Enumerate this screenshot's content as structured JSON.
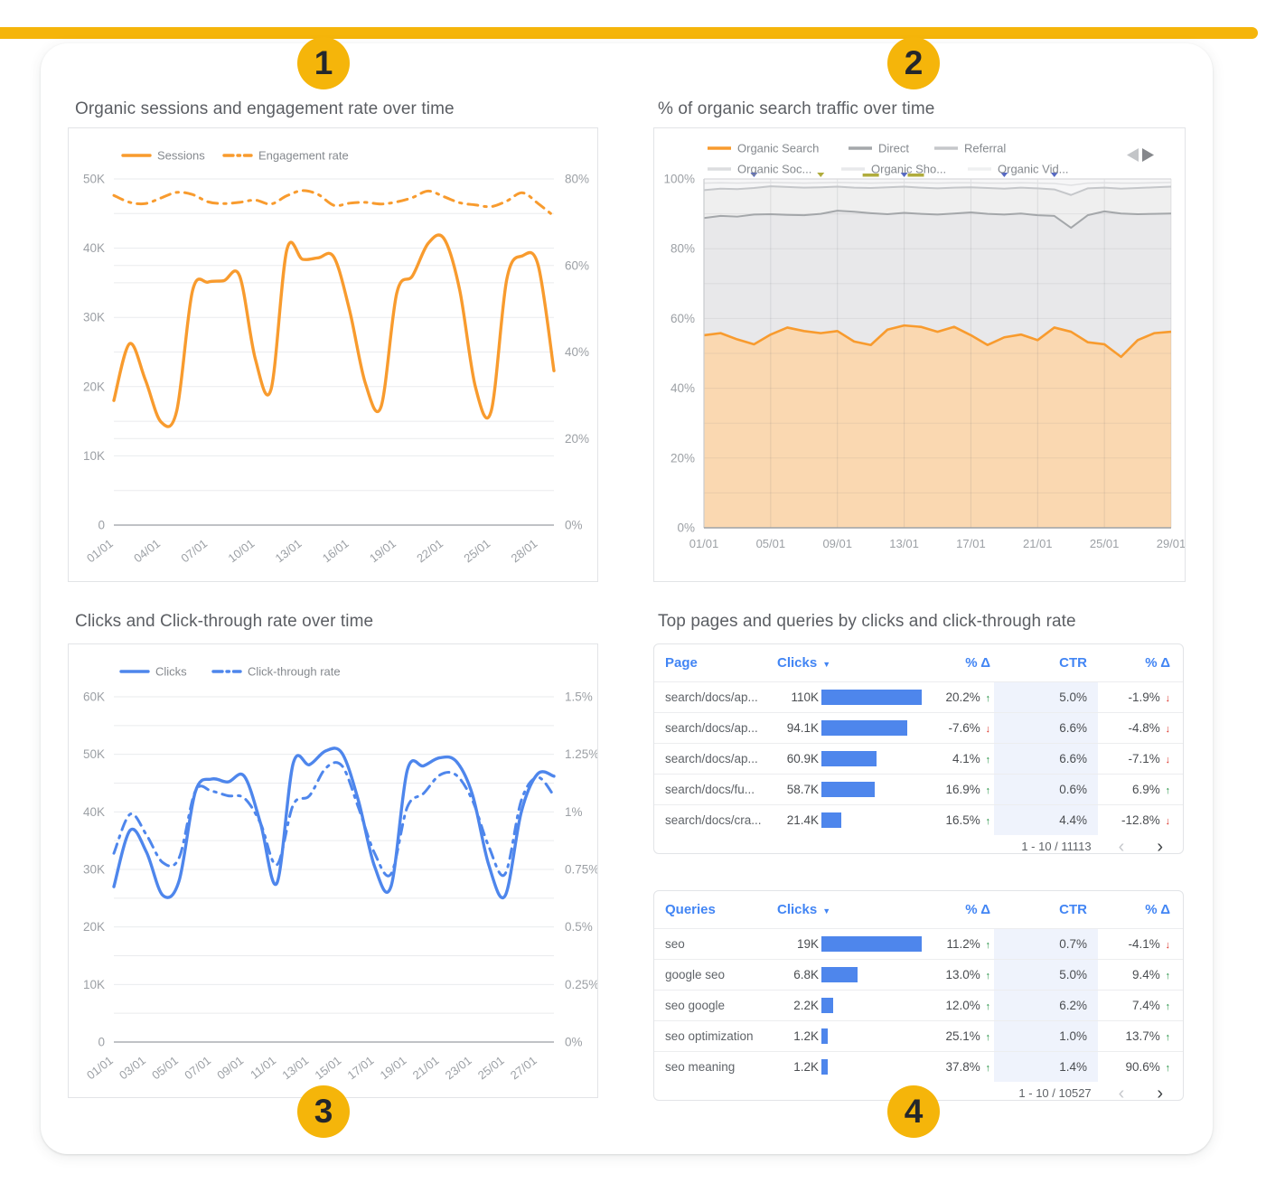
{
  "badges": [
    "1",
    "2",
    "3",
    "4"
  ],
  "panels": {
    "sessions": {
      "title": "Organic sessions and engagement rate over time"
    },
    "traffic": {
      "title": "% of organic search traffic over time"
    },
    "clicks": {
      "title": "Clicks and Click-through rate over time"
    },
    "tables": {
      "title": "Top pages and queries by clicks and click-through rate"
    }
  },
  "icons": {
    "sort": "▼",
    "up": "↑",
    "down": "↓",
    "prev": "‹",
    "next": "›",
    "nav_left": "◀",
    "nav_right": "▶"
  },
  "colors": {
    "accent_gold": "#F5B50A",
    "orange": "#F89B2E",
    "orange_fill": "#FAD8B1",
    "blue": "#4E86EC",
    "header_blue": "#4285F4",
    "green_up": "#1E8E3E",
    "red_down": "#D93025",
    "grid": "#EAEBEE",
    "axis_text": "#9CA0A5",
    "title_text": "#5B5E63",
    "cell_text": "#5F6368",
    "ctr_col_bg": "#EFF3FC"
  },
  "chart_data": [
    {
      "id": "sessions_engagement",
      "type": "line",
      "title": "Organic sessions and engagement rate over time",
      "x": [
        "01/01",
        "02/01",
        "03/01",
        "04/01",
        "05/01",
        "06/01",
        "07/01",
        "08/01",
        "09/01",
        "10/01",
        "11/01",
        "12/01",
        "13/01",
        "14/01",
        "15/01",
        "16/01",
        "17/01",
        "18/01",
        "19/01",
        "20/01",
        "21/01",
        "22/01",
        "23/01",
        "24/01",
        "25/01",
        "26/01",
        "27/01",
        "28/01",
        "29/01"
      ],
      "series": [
        {
          "name": "Sessions",
          "axis": "left",
          "style": "solid",
          "unit": "K",
          "values": [
            18.0,
            26.2,
            21.0,
            14.9,
            16.5,
            33.8,
            35.1,
            35.3,
            36.0,
            24.0,
            19.6,
            39.7,
            38.4,
            38.6,
            38.7,
            31.0,
            20.5,
            17.1,
            33.5,
            36.0,
            40.7,
            41.4,
            34.0,
            20.0,
            16.4,
            35.5,
            38.9,
            37.5,
            22.3
          ]
        },
        {
          "name": "Engagement rate",
          "axis": "right",
          "style": "dashdot",
          "unit": "%",
          "values": [
            76.2,
            74.6,
            74.3,
            75.6,
            76.9,
            76.4,
            74.7,
            74.3,
            74.6,
            75.1,
            74.2,
            76.1,
            77.3,
            76.4,
            73.9,
            74.4,
            74.6,
            74.2,
            74.7,
            75.7,
            77.2,
            75.9,
            74.5,
            74.0,
            73.6,
            74.9,
            76.8,
            74.3,
            71.4
          ]
        }
      ],
      "left_axis": {
        "min": 0,
        "max": 50,
        "ticks": [
          "0",
          "10K",
          "20K",
          "30K",
          "40K",
          "50K"
        ]
      },
      "right_axis": {
        "min": 0,
        "max": 80,
        "ticks": [
          "0%",
          "20%",
          "40%",
          "60%",
          "80%"
        ]
      },
      "x_tick_idx": [
        0,
        3,
        6,
        9,
        12,
        15,
        18,
        21,
        24,
        27
      ],
      "x_tick_labels": [
        "01/01",
        "04/01",
        "07/01",
        "10/01",
        "13/01",
        "16/01",
        "19/01",
        "22/01",
        "25/01",
        "28/01"
      ],
      "legend_position": "top"
    },
    {
      "id": "organic_share",
      "type": "area",
      "title": "% of organic search traffic over time",
      "x": [
        "01/01",
        "02/01",
        "03/01",
        "04/01",
        "05/01",
        "06/01",
        "07/01",
        "08/01",
        "09/01",
        "10/01",
        "11/01",
        "12/01",
        "13/01",
        "14/01",
        "15/01",
        "16/01",
        "17/01",
        "18/01",
        "19/01",
        "20/01",
        "21/01",
        "22/01",
        "23/01",
        "24/01",
        "25/01",
        "26/01",
        "27/01",
        "28/01",
        "29/01"
      ],
      "series": [
        {
          "name": "Organic Search",
          "boundary": "organic",
          "values": [
            55.2,
            55.8,
            54.0,
            52.6,
            55.4,
            57.4,
            56.4,
            55.8,
            56.4,
            53.4,
            52.4,
            56.8,
            58.0,
            57.6,
            56.2,
            57.6,
            55.2,
            52.4,
            54.6,
            55.4,
            53.8,
            57.4,
            56.2,
            53.2,
            52.6,
            49.0,
            53.8,
            55.8,
            56.2
          ]
        },
        {
          "name": "Direct",
          "boundary": "cumulative_top",
          "values": [
            88.8,
            89.4,
            89.2,
            89.8,
            89.9,
            89.7,
            89.6,
            90.0,
            90.9,
            90.6,
            90.2,
            89.9,
            90.3,
            90.0,
            89.8,
            90.1,
            90.4,
            90.0,
            89.8,
            90.1,
            89.6,
            89.4,
            86.0,
            89.6,
            90.7,
            90.1,
            89.9,
            90.0,
            90.1
          ]
        },
        {
          "name": "Referral",
          "boundary": "cumulative_top",
          "values": [
            96.8,
            97.2,
            97.1,
            97.4,
            97.9,
            97.7,
            97.5,
            97.6,
            97.8,
            97.5,
            97.4,
            97.6,
            97.8,
            97.5,
            97.3,
            97.5,
            97.6,
            97.4,
            97.2,
            97.5,
            97.3,
            97.0,
            95.4,
            97.3,
            97.5,
            97.2,
            97.4,
            97.6,
            97.8
          ]
        },
        {
          "name": "Organic Soc... / Sho... / Vid...",
          "boundary": "cumulative_top",
          "values": [
            98.8,
            98.9,
            98.8,
            98.9,
            99.0,
            98.9,
            98.8,
            98.9,
            99.0,
            98.9,
            98.8,
            98.9,
            99.0,
            98.9,
            98.8,
            98.9,
            98.9,
            98.8,
            98.8,
            98.9,
            98.8,
            98.7,
            98.2,
            98.8,
            98.9,
            98.8,
            98.8,
            98.9,
            99.0
          ]
        }
      ],
      "legend": [
        {
          "label": "Organic Search",
          "color": "#F89B2E"
        },
        {
          "label": "Direct",
          "color": "#A4A7AA"
        },
        {
          "label": "Referral",
          "color": "#C5C7CA"
        },
        {
          "label": "Organic Soc...",
          "color": "#DCDDDF"
        },
        {
          "label": "Organic Sho...",
          "color": "#E8E9EB"
        },
        {
          "label": "Organic Vid...",
          "color": "#EFF0F1"
        }
      ],
      "y_axis": {
        "min": 0,
        "max": 100,
        "ticks": [
          "0%",
          "20%",
          "40%",
          "60%",
          "80%",
          "100%"
        ]
      },
      "x_tick_idx": [
        0,
        4,
        8,
        12,
        16,
        20,
        24,
        28
      ],
      "x_tick_labels": [
        "01/01",
        "05/01",
        "09/01",
        "13/01",
        "17/01",
        "21/01",
        "25/01",
        "29/01"
      ],
      "markers": {
        "blue_triangle_days": [
          3,
          12,
          18,
          21
        ],
        "olive_triangle_days": [
          7
        ],
        "olive_bar_days": [
          10,
          12.7
        ]
      }
    },
    {
      "id": "clicks_ctr",
      "type": "line",
      "title": "Clicks and Click-through rate over time",
      "x": [
        "01/01",
        "02/01",
        "03/01",
        "04/01",
        "05/01",
        "06/01",
        "07/01",
        "08/01",
        "09/01",
        "10/01",
        "11/01",
        "12/01",
        "13/01",
        "14/01",
        "15/01",
        "16/01",
        "17/01",
        "18/01",
        "19/01",
        "20/01",
        "21/01",
        "22/01",
        "23/01",
        "24/01",
        "25/01",
        "26/01",
        "27/01",
        "28/01"
      ],
      "series": [
        {
          "name": "Clicks",
          "axis": "left",
          "style": "solid",
          "unit": "K",
          "values": [
            27.0,
            36.8,
            33.0,
            25.5,
            28.0,
            43.5,
            45.7,
            45.2,
            46.2,
            38.0,
            27.6,
            48.4,
            48.2,
            50.6,
            50.2,
            42.0,
            30.5,
            27.0,
            47.2,
            48.0,
            49.4,
            48.8,
            43.0,
            30.8,
            25.4,
            40.0,
            46.6,
            46.2
          ]
        },
        {
          "name": "Click-through rate",
          "axis": "right",
          "style": "dashdot",
          "unit": "%",
          "values": [
            0.82,
            0.99,
            0.9,
            0.78,
            0.8,
            1.09,
            1.09,
            1.07,
            1.06,
            0.95,
            0.77,
            1.03,
            1.07,
            1.19,
            1.2,
            1.02,
            0.82,
            0.73,
            1.02,
            1.08,
            1.16,
            1.16,
            1.05,
            0.85,
            0.73,
            1.05,
            1.15,
            1.07
          ]
        }
      ],
      "left_axis": {
        "min": 0,
        "max": 60,
        "ticks": [
          "0",
          "10K",
          "20K",
          "30K",
          "40K",
          "50K",
          "60K"
        ]
      },
      "right_axis": {
        "min": 0,
        "max": 1.5,
        "ticks": [
          "0%",
          "0.25%",
          "0.5%",
          "0.75%",
          "1%",
          "1.25%",
          "1.5%"
        ]
      },
      "x_tick_idx": [
        0,
        2,
        4,
        6,
        8,
        10,
        12,
        14,
        16,
        18,
        20,
        22,
        24,
        26
      ],
      "x_tick_labels": [
        "01/01",
        "03/01",
        "05/01",
        "07/01",
        "09/01",
        "11/01",
        "13/01",
        "15/01",
        "17/01",
        "19/01",
        "21/01",
        "23/01",
        "25/01",
        "27/01"
      ],
      "legend_position": "top"
    },
    {
      "id": "top_pages",
      "type": "table",
      "headers": [
        "Page",
        "Clicks",
        "% Δ",
        "CTR",
        "% Δ"
      ],
      "sorted_by": "Clicks",
      "rows": [
        {
          "name": "search/docs/ap...",
          "clicks_label": "110K",
          "clicks_value": 110,
          "delta_clicks": "20.2%",
          "delta_clicks_dir": "up",
          "ctr": "5.0%",
          "delta_ctr": "-1.9%",
          "delta_ctr_dir": "down"
        },
        {
          "name": "search/docs/ap...",
          "clicks_label": "94.1K",
          "clicks_value": 94.1,
          "delta_clicks": "-7.6%",
          "delta_clicks_dir": "down",
          "ctr": "6.6%",
          "delta_ctr": "-4.8%",
          "delta_ctr_dir": "down"
        },
        {
          "name": "search/docs/ap...",
          "clicks_label": "60.9K",
          "clicks_value": 60.9,
          "delta_clicks": "4.1%",
          "delta_clicks_dir": "up",
          "ctr": "6.6%",
          "delta_ctr": "-7.1%",
          "delta_ctr_dir": "down"
        },
        {
          "name": "search/docs/fu...",
          "clicks_label": "58.7K",
          "clicks_value": 58.7,
          "delta_clicks": "16.9%",
          "delta_clicks_dir": "up",
          "ctr": "0.6%",
          "delta_ctr": "6.9%",
          "delta_ctr_dir": "up"
        },
        {
          "name": "search/docs/cra...",
          "clicks_label": "21.4K",
          "clicks_value": 21.4,
          "delta_clicks": "16.5%",
          "delta_clicks_dir": "up",
          "ctr": "4.4%",
          "delta_ctr": "-12.8%",
          "delta_ctr_dir": "down"
        }
      ],
      "footer": "1 - 10 / 11113"
    },
    {
      "id": "top_queries",
      "type": "table",
      "headers": [
        "Queries",
        "Clicks",
        "% Δ",
        "CTR",
        "% Δ"
      ],
      "sorted_by": "Clicks",
      "rows": [
        {
          "name": "seo",
          "clicks_label": "19K",
          "clicks_value": 19,
          "delta_clicks": "11.2%",
          "delta_clicks_dir": "up",
          "ctr": "0.7%",
          "delta_ctr": "-4.1%",
          "delta_ctr_dir": "down"
        },
        {
          "name": "google seo",
          "clicks_label": "6.8K",
          "clicks_value": 6.8,
          "delta_clicks": "13.0%",
          "delta_clicks_dir": "up",
          "ctr": "5.0%",
          "delta_ctr": "9.4%",
          "delta_ctr_dir": "up"
        },
        {
          "name": "seo google",
          "clicks_label": "2.2K",
          "clicks_value": 2.2,
          "delta_clicks": "12.0%",
          "delta_clicks_dir": "up",
          "ctr": "6.2%",
          "delta_ctr": "7.4%",
          "delta_ctr_dir": "up"
        },
        {
          "name": "seo optimization",
          "clicks_label": "1.2K",
          "clicks_value": 1.2,
          "delta_clicks": "25.1%",
          "delta_clicks_dir": "up",
          "ctr": "1.0%",
          "delta_ctr": "13.7%",
          "delta_ctr_dir": "up"
        },
        {
          "name": "seo meaning",
          "clicks_label": "1.2K",
          "clicks_value": 1.2,
          "delta_clicks": "37.8%",
          "delta_clicks_dir": "up",
          "ctr": "1.4%",
          "delta_ctr": "90.6%",
          "delta_ctr_dir": "up"
        }
      ],
      "footer": "1 - 10 / 10527"
    }
  ]
}
